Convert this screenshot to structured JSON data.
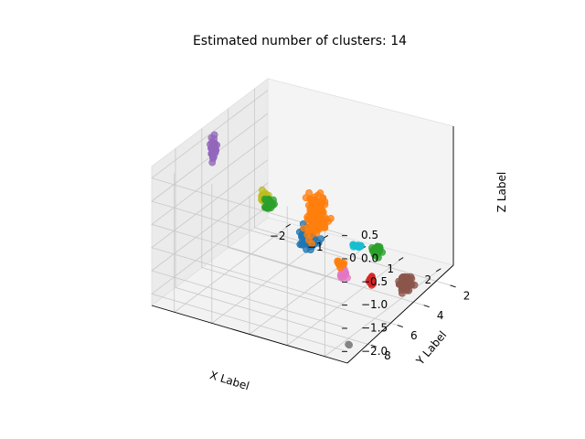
{
  "chart_data": {
    "type": "scatter3d",
    "title": "Estimated number of clusters: 14",
    "xlabel": "X Label",
    "ylabel": "Y Label",
    "zlabel": "Z Label",
    "x_ticks": [
      "−2",
      "−1",
      "0",
      "1",
      "2"
    ],
    "y_ticks": [
      "2",
      "4",
      "6",
      "8"
    ],
    "z_ticks": [
      "0.5",
      "0.0",
      "−0.5",
      "−1.0",
      "−1.5",
      "−2.0"
    ],
    "xlim": [
      -2.6,
      2.6
    ],
    "ylim": [
      1.0,
      9.8
    ],
    "zlim": [
      -2.25,
      0.75
    ],
    "grid": true,
    "legend": "none",
    "series": [
      {
        "color": "#1f77b4",
        "center": [
          0.9,
          8.0,
          -0.35
        ],
        "spread": [
          0.28,
          0.5,
          0.28
        ],
        "count": 70
      },
      {
        "color": "#ff7f0e",
        "center": [
          -0.1,
          4.5,
          -0.9
        ],
        "spread": [
          0.2,
          0.8,
          0.55
        ],
        "count": 130
      },
      {
        "color": "#ff7f0e",
        "center": [
          0.9,
          5.5,
          -1.45
        ],
        "spread": [
          0.15,
          0.3,
          0.07
        ],
        "count": 10
      },
      {
        "color": "#2ca02c",
        "center": [
          -1.7,
          3.5,
          -1.2
        ],
        "spread": [
          0.12,
          0.2,
          0.12
        ],
        "count": 30
      },
      {
        "color": "#2ca02c",
        "center": [
          0.5,
          1.6,
          -2.1
        ],
        "spread": [
          0.12,
          0.15,
          0.15
        ],
        "count": 40
      },
      {
        "color": "#d62728",
        "center": [
          1.2,
          4.0,
          -2.05
        ],
        "spread": [
          0.06,
          0.1,
          0.12
        ],
        "count": 16
      },
      {
        "color": "#9467bd",
        "center": [
          -2.3,
          6.0,
          0.45
        ],
        "spread": [
          0.1,
          0.12,
          0.28
        ],
        "count": 45
      },
      {
        "color": "#8c564b",
        "center": [
          2.0,
          3.6,
          -2.0
        ],
        "spread": [
          0.2,
          0.35,
          0.18
        ],
        "count": 60
      },
      {
        "color": "#e377c2",
        "center": [
          1.3,
          6.4,
          -1.35
        ],
        "spread": [
          0.12,
          0.2,
          0.18
        ],
        "count": 22
      },
      {
        "color": "#7f7f7f",
        "center": [
          2.3,
          8.8,
          -2.15
        ],
        "spread": [
          0.04,
          0.05,
          0.06
        ],
        "count": 2
      },
      {
        "color": "#bcbd22",
        "center": [
          -1.5,
          4.5,
          -0.8
        ],
        "spread": [
          0.12,
          0.15,
          0.12
        ],
        "count": 25
      },
      {
        "color": "#17becf",
        "center": [
          0.3,
          2.5,
          -1.85
        ],
        "spread": [
          0.15,
          0.1,
          0.04
        ],
        "count": 18
      }
    ]
  }
}
